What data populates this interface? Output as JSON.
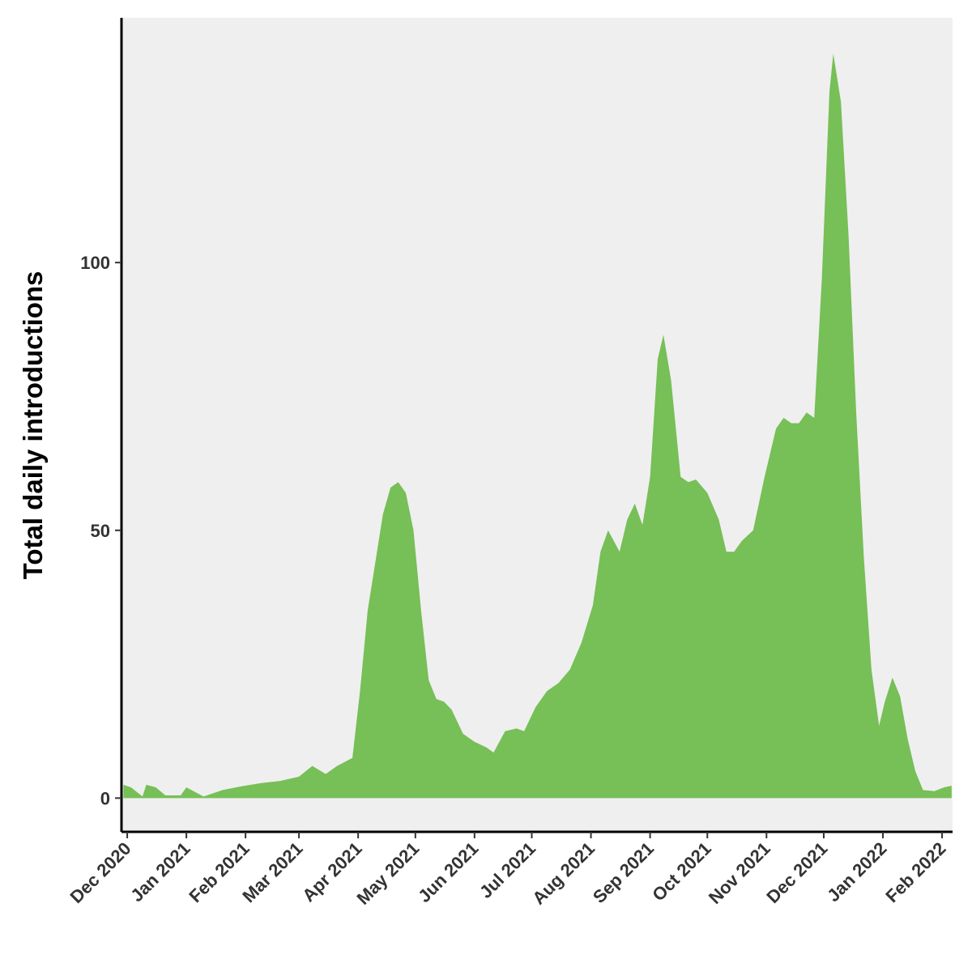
{
  "chart_data": {
    "type": "area",
    "y_label": "Total daily introductions",
    "color": "#77bf57",
    "x": [
      -2,
      2,
      8,
      10,
      15,
      20,
      28,
      31,
      40,
      50,
      60,
      70,
      80,
      90,
      97,
      104,
      110,
      118,
      122,
      126,
      130,
      134,
      138,
      142,
      146,
      150,
      154,
      158,
      162,
      166,
      170,
      176,
      182,
      188,
      192,
      198,
      204,
      208,
      214,
      220,
      226,
      232,
      238,
      244,
      248,
      252,
      258,
      262,
      266,
      270,
      274,
      278,
      281,
      285,
      290,
      294,
      298,
      304,
      310,
      314,
      318,
      322,
      328,
      334,
      340,
      344,
      348,
      352,
      356,
      360,
      364,
      368,
      370,
      374,
      378,
      382,
      386,
      390,
      394,
      397,
      401,
      405,
      409,
      413,
      417,
      423,
      428,
      432
    ],
    "values": [
      2.5,
      2,
      0.3,
      2.5,
      2,
      0.5,
      0.5,
      2,
      0.3,
      1.5,
      2.2,
      2.8,
      3.2,
      4,
      6,
      4.5,
      6,
      7.5,
      20,
      35,
      44,
      53,
      58,
      59,
      57,
      50,
      35,
      22,
      18.5,
      18,
      16.5,
      12,
      10.5,
      9.5,
      8.5,
      12.5,
      13,
      12.5,
      17,
      20,
      21.5,
      24,
      29,
      36,
      46,
      50,
      46,
      52,
      55,
      51,
      60,
      82,
      86.5,
      78,
      60,
      59,
      59.5,
      57,
      52,
      46,
      46,
      48,
      50,
      60,
      69,
      71,
      70,
      70,
      72,
      71,
      97,
      132,
      139,
      130,
      105,
      72,
      45,
      24,
      13.5,
      18,
      22.5,
      19,
      11,
      5,
      1.5,
      1.3,
      2,
      2.3
    ],
    "xlim": [
      -3,
      432.5
    ],
    "xticks": [
      {
        "value": 0,
        "label": "Dec 2020"
      },
      {
        "value": 31,
        "label": "Jan 2021"
      },
      {
        "value": 62,
        "label": "Feb 2021"
      },
      {
        "value": 90,
        "label": "Mar 2021"
      },
      {
        "value": 121,
        "label": "Apr 2021"
      },
      {
        "value": 151,
        "label": "May 2021"
      },
      {
        "value": 182,
        "label": "Jun 2021"
      },
      {
        "value": 212,
        "label": "Jul 2021"
      },
      {
        "value": 243,
        "label": "Aug 2021"
      },
      {
        "value": 274,
        "label": "Sep 2021"
      },
      {
        "value": 304,
        "label": "Oct 2021"
      },
      {
        "value": 335,
        "label": "Nov 2021"
      },
      {
        "value": 365,
        "label": "Dec 2021"
      },
      {
        "value": 396,
        "label": "Jan 2022"
      },
      {
        "value": 427,
        "label": "Feb 2022"
      }
    ],
    "ylim": [
      -6.3,
      145.7
    ],
    "yticks": [
      0,
      50,
      100
    ]
  }
}
